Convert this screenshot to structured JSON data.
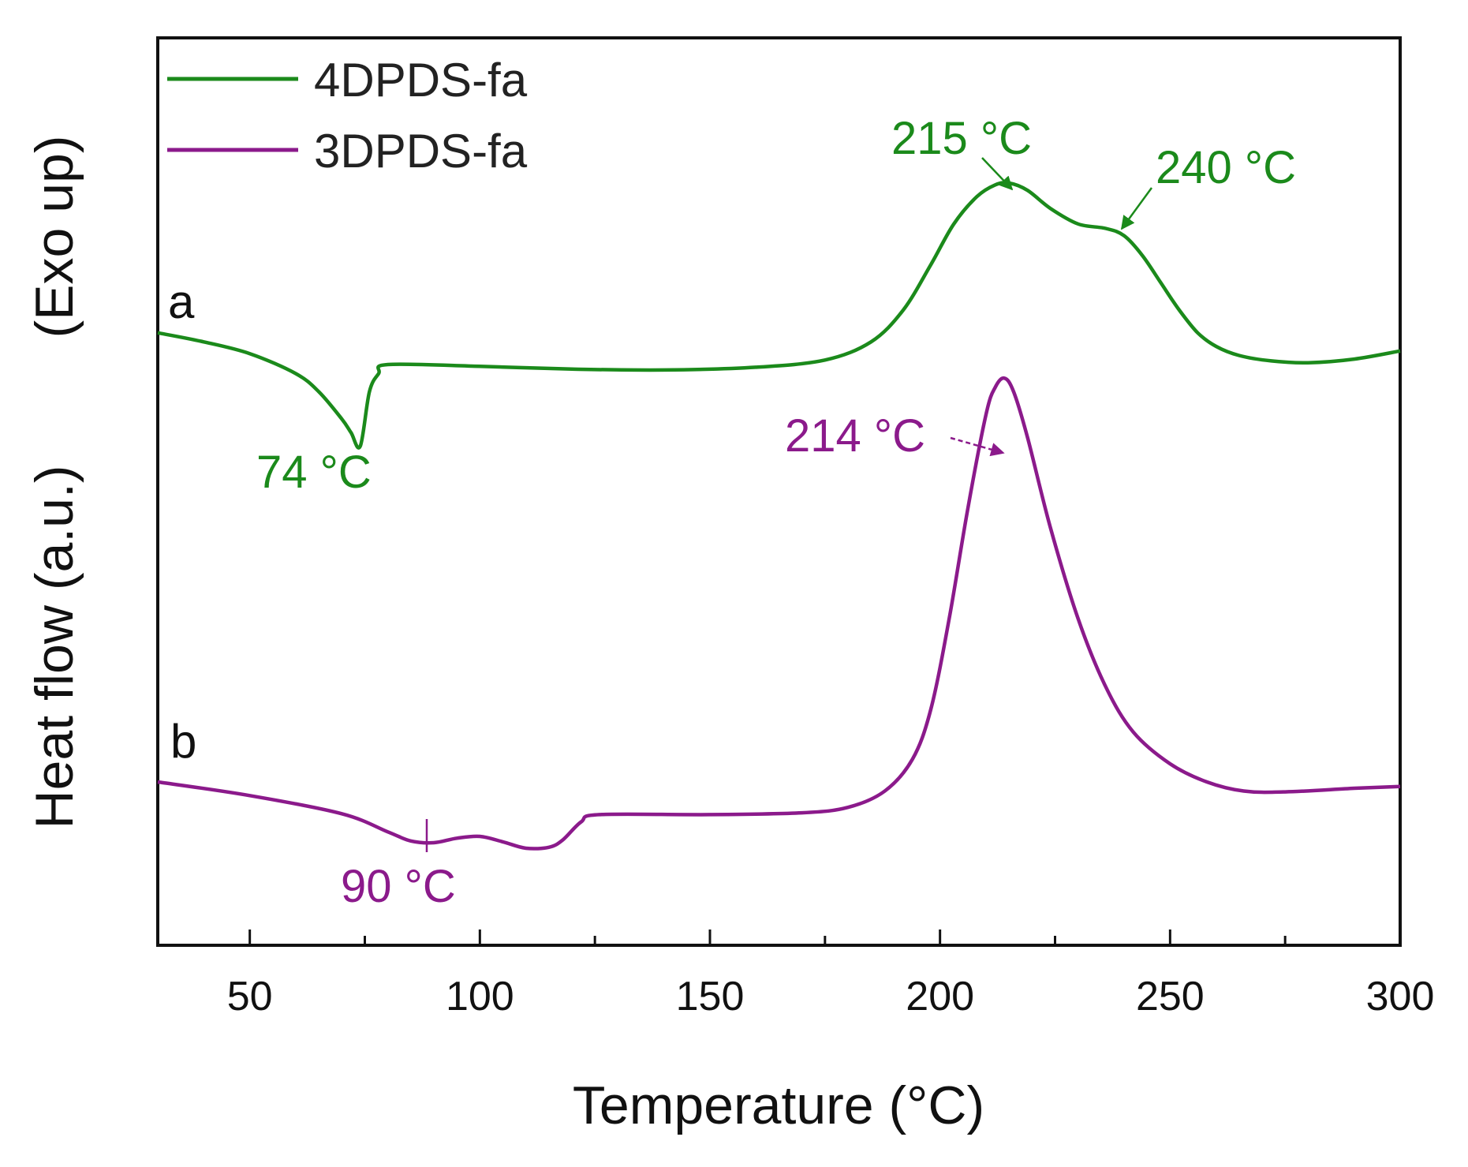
{
  "chart_data": {
    "type": "line",
    "title": "",
    "xlabel": "Temperature (°C)",
    "ylabel_main": "Heat flow (a.u.)",
    "ylabel_note": "(Exo up)",
    "xlim": [
      30,
      300
    ],
    "ylim": [
      0,
      100
    ],
    "x_ticks": [
      50,
      100,
      150,
      200,
      250,
      300
    ],
    "x_minor_ticks": [
      75,
      125,
      175,
      225,
      275
    ],
    "grid": false,
    "legend_position": "top-left",
    "colors": {
      "series_a": "#1b8a1b",
      "series_b": "#8b1a8b",
      "axis": "#111111"
    },
    "series": [
      {
        "name": "4DPDS-fa",
        "label": "a",
        "color": "#1b8a1b",
        "points": [
          [
            30,
            67.5
          ],
          [
            40,
            66.5
          ],
          [
            50,
            65.2
          ],
          [
            60,
            63
          ],
          [
            65,
            61
          ],
          [
            70,
            58
          ],
          [
            72,
            56.5
          ],
          [
            74,
            55
          ],
          [
            76,
            61
          ],
          [
            78,
            63
          ],
          [
            80,
            64
          ],
          [
            100,
            63.8
          ],
          [
            120,
            63.5
          ],
          [
            140,
            63.4
          ],
          [
            160,
            63.7
          ],
          [
            175,
            64.5
          ],
          [
            185,
            66.5
          ],
          [
            192,
            70
          ],
          [
            198,
            75
          ],
          [
            203,
            79.5
          ],
          [
            208,
            82.5
          ],
          [
            212,
            83.8
          ],
          [
            215,
            84
          ],
          [
            219,
            83.2
          ],
          [
            224,
            81.2
          ],
          [
            230,
            79.5
          ],
          [
            236,
            79
          ],
          [
            240,
            78.2
          ],
          [
            244,
            76
          ],
          [
            248,
            73
          ],
          [
            252,
            70
          ],
          [
            256,
            67.5
          ],
          [
            260,
            66
          ],
          [
            265,
            65
          ],
          [
            272,
            64.4
          ],
          [
            280,
            64.2
          ],
          [
            290,
            64.6
          ],
          [
            300,
            65.5
          ]
        ]
      },
      {
        "name": "3DPDS-fa",
        "label": "b",
        "color": "#8b1a8b",
        "points": [
          [
            30,
            18
          ],
          [
            50,
            16.5
          ],
          [
            70,
            14.5
          ],
          [
            80,
            12.5
          ],
          [
            85,
            11.5
          ],
          [
            90,
            11.3
          ],
          [
            95,
            11.8
          ],
          [
            100,
            12
          ],
          [
            105,
            11.4
          ],
          [
            110,
            10.7
          ],
          [
            115,
            10.8
          ],
          [
            118,
            11.6
          ],
          [
            122,
            13.6
          ],
          [
            126,
            14.4
          ],
          [
            150,
            14.4
          ],
          [
            170,
            14.6
          ],
          [
            180,
            15.2
          ],
          [
            188,
            17
          ],
          [
            194,
            20.5
          ],
          [
            198,
            26
          ],
          [
            202,
            36
          ],
          [
            206,
            48
          ],
          [
            210,
            58.5
          ],
          [
            212,
            61.5
          ],
          [
            214,
            62.5
          ],
          [
            216,
            61
          ],
          [
            219,
            56
          ],
          [
            224,
            46
          ],
          [
            230,
            36
          ],
          [
            236,
            28.5
          ],
          [
            242,
            23.5
          ],
          [
            250,
            20
          ],
          [
            258,
            18
          ],
          [
            266,
            17
          ],
          [
            275,
            16.9
          ],
          [
            290,
            17.3
          ],
          [
            300,
            17.5
          ]
        ]
      }
    ],
    "annotations": [
      {
        "text": "74 °C",
        "series": "4DPDS-fa",
        "type": "dip"
      },
      {
        "text": "215 °C",
        "series": "4DPDS-fa",
        "type": "arrow"
      },
      {
        "text": "240 °C",
        "series": "4DPDS-fa",
        "type": "arrow"
      },
      {
        "text": "214 °C",
        "series": "3DPDS-fa",
        "type": "arrow"
      },
      {
        "text": "90 °C",
        "series": "3DPDS-fa",
        "type": "tick-mark"
      }
    ]
  }
}
